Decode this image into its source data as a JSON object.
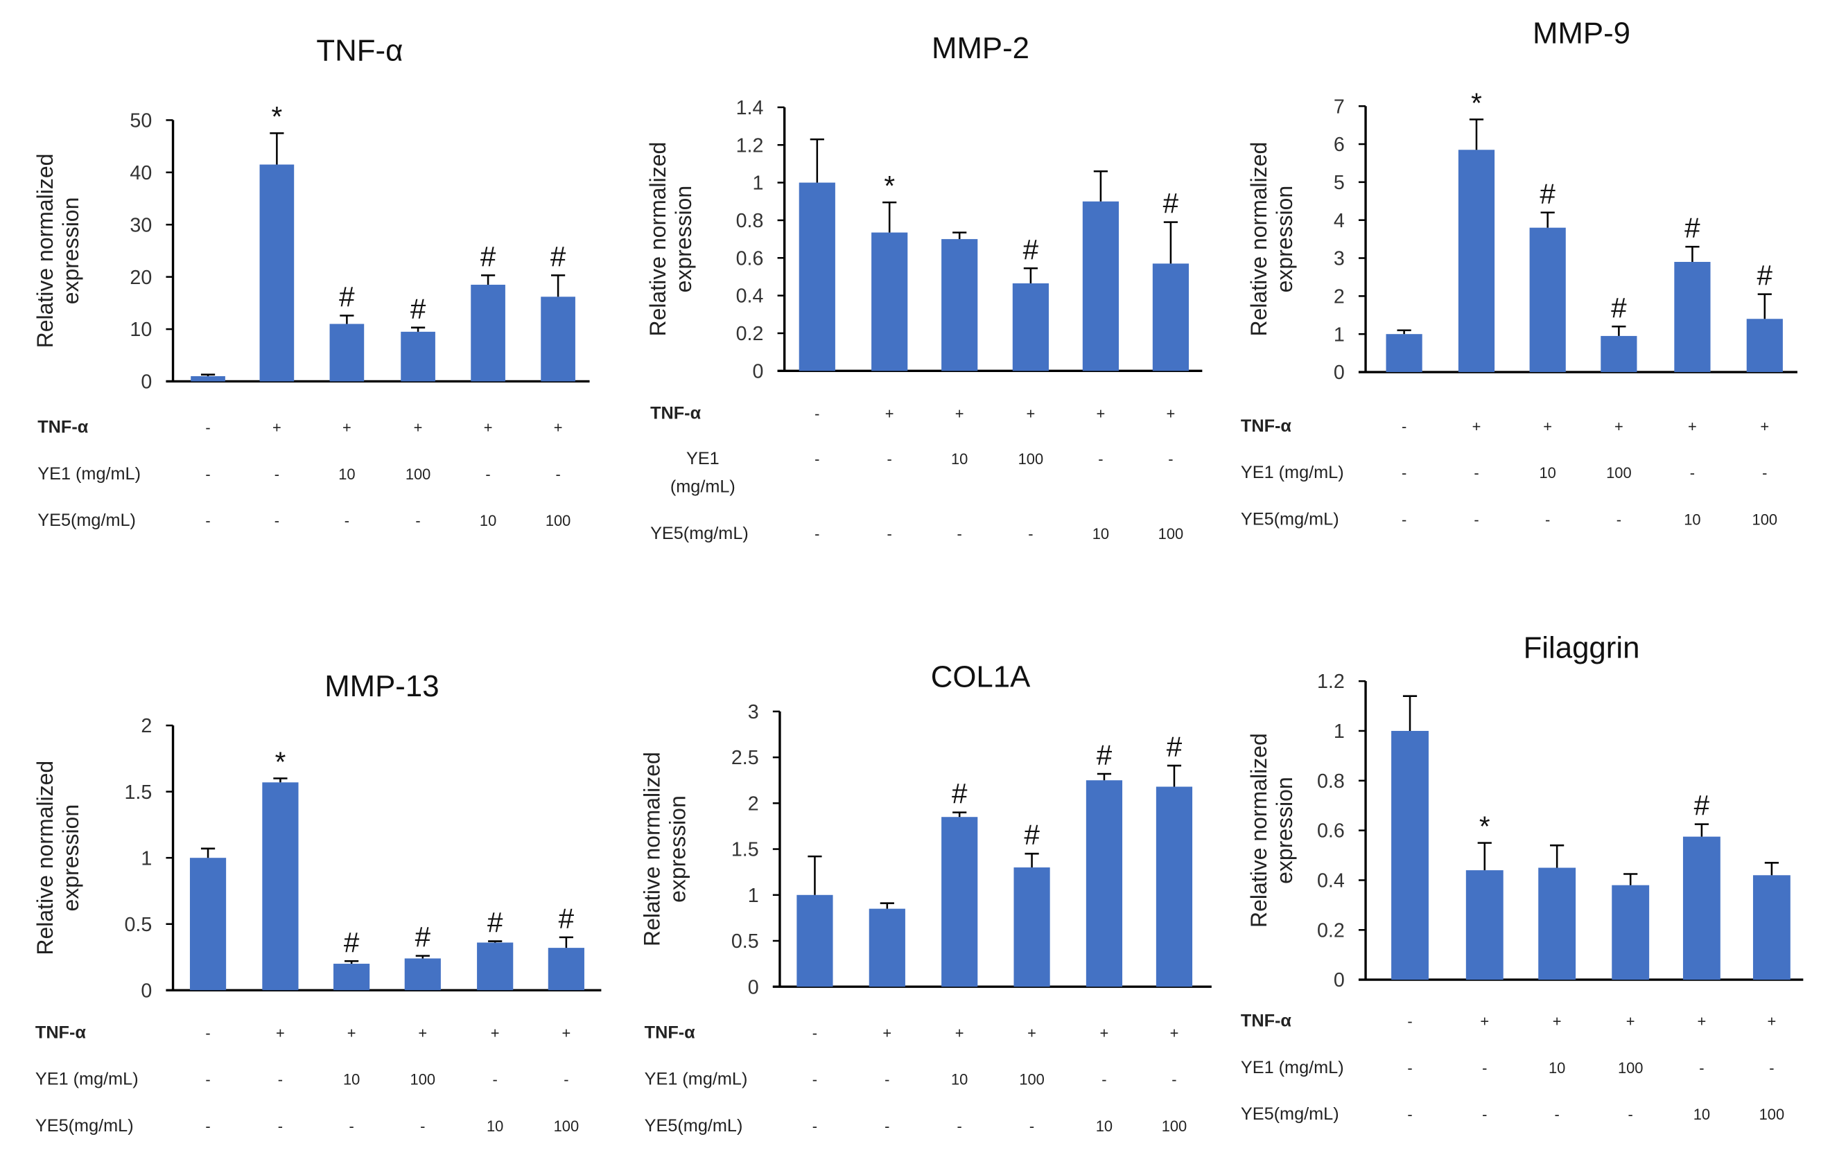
{
  "bar_color": "#4472C4",
  "chart_data": [
    {
      "type": "bar",
      "title": "TNF-α",
      "ylabel": "Relative normalized expression",
      "ylabel_lines": [
        "Relative normalized",
        "expression"
      ],
      "ylim": [
        0,
        50
      ],
      "yticks": [
        "0",
        "10",
        "20",
        "30",
        "40",
        "50"
      ],
      "values": [
        1,
        41.5,
        11,
        9.5,
        18.5,
        16.2
      ],
      "errors": [
        0.3,
        6,
        1.6,
        0.8,
        1.8,
        4.1
      ],
      "annotations": [
        "",
        "*",
        "#",
        "#",
        "#",
        "#"
      ],
      "rows": [
        {
          "label": "TNF-α",
          "cells": [
            "-",
            "+",
            "+",
            "+",
            "+",
            "+"
          ]
        },
        {
          "label": "YE1 (mg/mL)",
          "cells": [
            "-",
            "-",
            "10",
            "100",
            "-",
            "-"
          ]
        },
        {
          "label": "YE5(mg/mL)",
          "cells": [
            "-",
            "-",
            "-",
            "-",
            "10",
            "100"
          ]
        }
      ]
    },
    {
      "type": "bar",
      "title": "MMP-2",
      "ylabel": "Relative normalized expression",
      "ylabel_lines": [
        "Relative normalized",
        "expression"
      ],
      "ylim": [
        0,
        1.4
      ],
      "yticks": [
        "0",
        "0.2",
        "0.4",
        "0.6",
        "0.8",
        "1",
        "1.2",
        "1.4"
      ],
      "values": [
        1,
        0.735,
        0.7,
        0.465,
        0.9,
        0.57
      ],
      "errors": [
        0.23,
        0.16,
        0.035,
        0.08,
        0.16,
        0.22
      ],
      "annotations": [
        "",
        "*",
        "",
        "#",
        "",
        "#"
      ],
      "rows": [
        {
          "label": "TNF-α",
          "cells": [
            "-",
            "+",
            "+",
            "+",
            "+",
            "+"
          ]
        },
        {
          "label": "YE1 (mg/mL)",
          "cells": [
            "-",
            "-",
            "10",
            "100",
            "-",
            "-"
          ]
        },
        {
          "label": "YE5(mg/mL)",
          "cells": [
            "-",
            "-",
            "-",
            "-",
            "10",
            "100"
          ]
        }
      ]
    },
    {
      "type": "bar",
      "title": "MMP-9",
      "ylabel": "Relative normalized expression",
      "ylabel_lines": [
        "Relative normalized",
        "expression"
      ],
      "ylim": [
        0,
        7
      ],
      "yticks": [
        "0",
        "1",
        "2",
        "3",
        "4",
        "5",
        "6",
        "7"
      ],
      "values": [
        1,
        5.85,
        3.8,
        0.95,
        2.9,
        1.4
      ],
      "errors": [
        0.1,
        0.8,
        0.4,
        0.25,
        0.4,
        0.65
      ],
      "annotations": [
        "",
        "*",
        "#",
        "#",
        "#",
        "#"
      ],
      "rows": [
        {
          "label": "TNF-α",
          "cells": [
            "-",
            "+",
            "+",
            "+",
            "+",
            "+"
          ]
        },
        {
          "label": "YE1 (mg/mL)",
          "cells": [
            "-",
            "-",
            "10",
            "100",
            "-",
            "-"
          ]
        },
        {
          "label": "YE5(mg/mL)",
          "cells": [
            "-",
            "-",
            "-",
            "-",
            "10",
            "100"
          ]
        }
      ]
    },
    {
      "type": "bar",
      "title": "MMP-13",
      "ylabel": "Relative normalized expression",
      "ylabel_lines": [
        "Relative normalized",
        "expression"
      ],
      "ylim": [
        0,
        2
      ],
      "yticks": [
        "0",
        "0.5",
        "1",
        "1.5",
        "2"
      ],
      "values": [
        1,
        1.57,
        0.2,
        0.24,
        0.36,
        0.32
      ],
      "errors": [
        0.07,
        0.03,
        0.02,
        0.02,
        0.01,
        0.08
      ],
      "annotations": [
        "",
        "*",
        "#",
        "#",
        "#",
        "#"
      ],
      "rows": [
        {
          "label": "TNF-α",
          "cells": [
            "-",
            "+",
            "+",
            "+",
            "+",
            "+"
          ]
        },
        {
          "label": "YE1 (mg/mL)",
          "cells": [
            "-",
            "-",
            "10",
            "100",
            "-",
            "-"
          ]
        },
        {
          "label": "YE5(mg/mL)",
          "cells": [
            "-",
            "-",
            "-",
            "-",
            "10",
            "100"
          ]
        }
      ]
    },
    {
      "type": "bar",
      "title": "COL1A",
      "ylabel": "Relative normalized expression",
      "ylabel_lines": [
        "Relative normalized",
        "expression"
      ],
      "ylim": [
        0,
        3
      ],
      "yticks": [
        "0",
        "0.5",
        "1",
        "1.5",
        "2",
        "2.5",
        "3"
      ],
      "values": [
        1,
        0.85,
        1.85,
        1.3,
        2.25,
        2.18
      ],
      "errors": [
        0.42,
        0.06,
        0.05,
        0.15,
        0.07,
        0.23
      ],
      "annotations": [
        "",
        "",
        "#",
        "#",
        "#",
        "#"
      ],
      "rows": [
        {
          "label": "TNF-α",
          "cells": [
            "-",
            "+",
            "+",
            "+",
            "+",
            "+"
          ]
        },
        {
          "label": "YE1 (mg/mL)",
          "cells": [
            "-",
            "-",
            "10",
            "100",
            "-",
            "-"
          ]
        },
        {
          "label": "YE5(mg/mL)",
          "cells": [
            "-",
            "-",
            "-",
            "-",
            "10",
            "100"
          ]
        }
      ]
    },
    {
      "type": "bar",
      "title": "Filaggrin",
      "ylabel": "Relative normalized expression",
      "ylabel_lines": [
        "Relative normalized",
        "expression"
      ],
      "ylim": [
        0,
        1.2
      ],
      "yticks": [
        "0",
        "0.2",
        "0.4",
        "0.6",
        "0.8",
        "1",
        "1.2"
      ],
      "values": [
        1,
        0.44,
        0.45,
        0.38,
        0.575,
        0.42
      ],
      "errors": [
        0.14,
        0.11,
        0.09,
        0.045,
        0.05,
        0.05
      ],
      "annotations": [
        "",
        "*",
        "",
        "",
        "#",
        ""
      ],
      "rows": [
        {
          "label": "TNF-α",
          "cells": [
            "-",
            "+",
            "+",
            "+",
            "+",
            "+"
          ]
        },
        {
          "label": "YE1 (mg/mL)",
          "cells": [
            "-",
            "-",
            "10",
            "100",
            "-",
            "-"
          ]
        },
        {
          "label": "YE5(mg/mL)",
          "cells": [
            "-",
            "-",
            "-",
            "-",
            "10",
            "100"
          ]
        }
      ]
    }
  ]
}
